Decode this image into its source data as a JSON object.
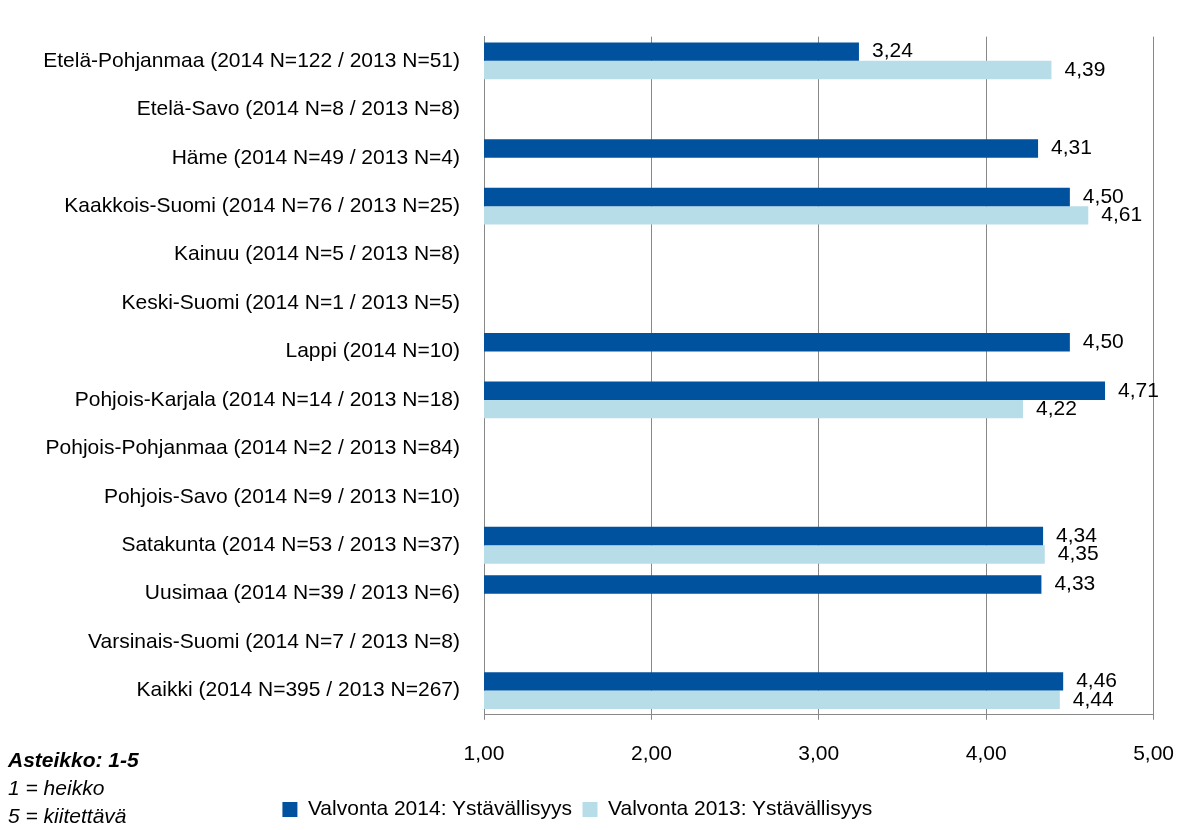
{
  "chart_data": {
    "type": "bar",
    "orientation": "horizontal",
    "categories": [
      "Etelä-Pohjanmaa (2014 N=122 / 2013 N=51)",
      "Etelä-Savo (2014 N=8 / 2013 N=8)",
      "Häme (2014 N=49 / 2013 N=4)",
      "Kaakkois-Suomi (2014 N=76 / 2013 N=25)",
      "Kainuu (2014 N=5 / 2013 N=8)",
      "Keski-Suomi (2014 N=1 / 2013 N=5)",
      "Lappi (2014 N=10)",
      "Pohjois-Karjala (2014 N=14 / 2013 N=18)",
      "Pohjois-Pohjanmaa (2014 N=2 / 2013 N=84)",
      "Pohjois-Savo (2014 N=9 / 2013 N=10)",
      "Satakunta (2014 N=53 / 2013 N=37)",
      "Uusimaa (2014 N=39 / 2013 N=6)",
      "Varsinais-Suomi (2014 N=7 / 2013 N=8)",
      "Kaikki (2014 N=395 / 2013 N=267)"
    ],
    "series": [
      {
        "name": "Valvonta 2014: Ystävällisyys",
        "color": "#00529f",
        "values": [
          3.24,
          null,
          4.31,
          4.5,
          null,
          null,
          4.5,
          4.71,
          null,
          null,
          4.34,
          4.33,
          null,
          4.46
        ],
        "value_labels": [
          "3,24",
          null,
          "4,31",
          "4,50",
          null,
          null,
          "4,50",
          "4,71",
          null,
          null,
          "4,34",
          "4,33",
          null,
          "4,46"
        ]
      },
      {
        "name": "Valvonta 2013: Ystävällisyys",
        "color": "#b7dde8",
        "values": [
          4.39,
          null,
          null,
          4.61,
          null,
          null,
          null,
          4.22,
          null,
          null,
          4.35,
          null,
          null,
          4.44
        ],
        "value_labels": [
          "4,39",
          null,
          null,
          "4,61",
          null,
          null,
          null,
          "4,22",
          null,
          null,
          "4,35",
          null,
          null,
          "4,44"
        ]
      }
    ],
    "xlim": [
      1,
      5
    ],
    "xticks": [
      {
        "value": 1,
        "label": "1,00"
      },
      {
        "value": 2,
        "label": "2,00"
      },
      {
        "value": 3,
        "label": "3,00"
      },
      {
        "value": 4,
        "label": "4,00"
      },
      {
        "value": 5,
        "label": "5,00"
      }
    ],
    "grid": "x",
    "legend": "bottom",
    "annotations": [
      "Asteikko: 1-5",
      "1 = heikko",
      "5 = kiitettävä"
    ]
  }
}
